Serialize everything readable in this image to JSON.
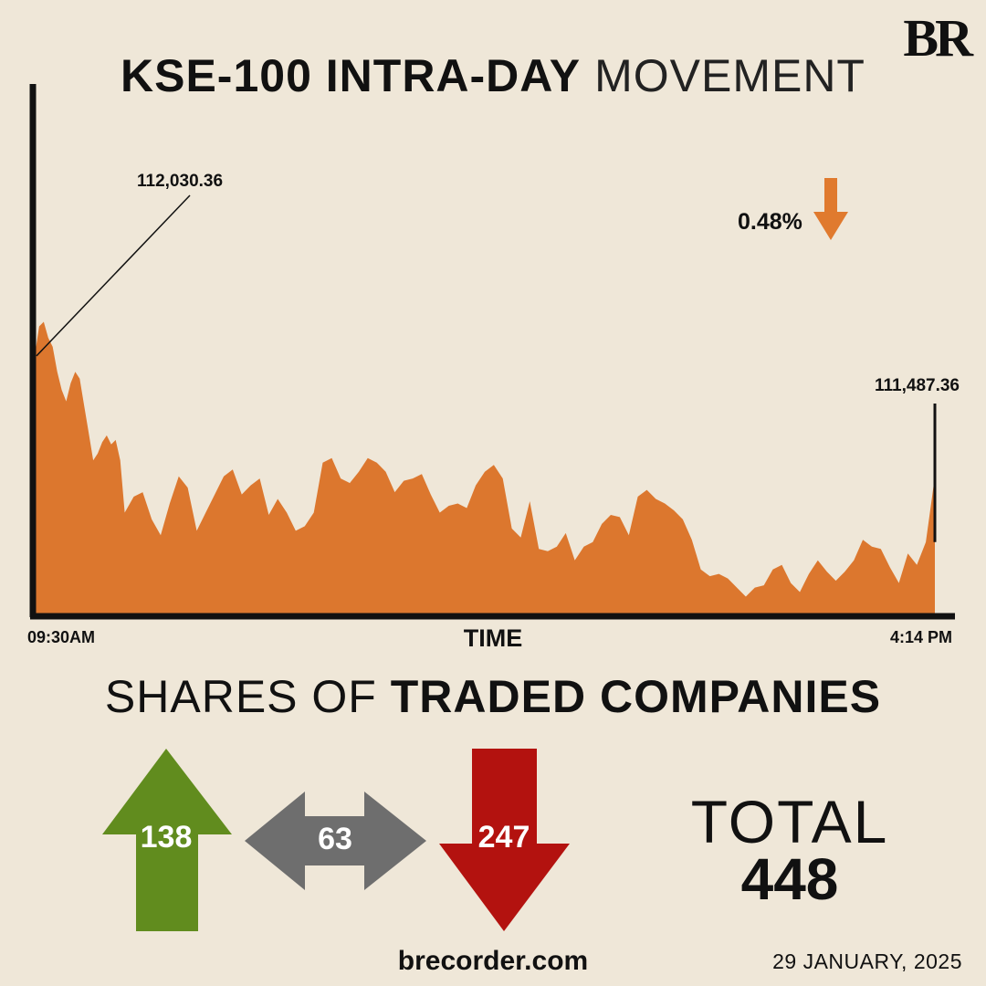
{
  "brand": {
    "logo_text": "BR",
    "website": "brecorder.com"
  },
  "title": {
    "bold": "KSE-100 INTRA-DAY",
    "light": "MOVEMENT"
  },
  "change": {
    "percent_label": "0.48%",
    "direction": "down",
    "arrow_color": "#e07a2e"
  },
  "chart_data": {
    "type": "area",
    "title": "KSE-100 INTRA-DAY MOVEMENT",
    "xlabel": "TIME",
    "ylabel": "",
    "x_start_label": "09:30AM",
    "x_end_label": "4:14 PM",
    "open_label": "112,030.36",
    "close_label": "111,487.36",
    "open": 112030.36,
    "close": 111487.36,
    "fill_color": "#dc772e",
    "series": [
      {
        "x": [
          0.0,
          0.005,
          0.01,
          0.015,
          0.02,
          0.025,
          0.03,
          0.035,
          0.04,
          0.045,
          0.05,
          0.055,
          0.06,
          0.065,
          0.07,
          0.075,
          0.08,
          0.085,
          0.09,
          0.095,
          0.1,
          0.11,
          0.12,
          0.13,
          0.14,
          0.15,
          0.16,
          0.17,
          0.18,
          0.19,
          0.2,
          0.21,
          0.22,
          0.23,
          0.24,
          0.25,
          0.26,
          0.27,
          0.28,
          0.29,
          0.3,
          0.31,
          0.32,
          0.33,
          0.34,
          0.35,
          0.36,
          0.37,
          0.38,
          0.39,
          0.4,
          0.41,
          0.42,
          0.43,
          0.44,
          0.45,
          0.46,
          0.47,
          0.48,
          0.49,
          0.5,
          0.51,
          0.52,
          0.53,
          0.54,
          0.55,
          0.56,
          0.57,
          0.58,
          0.59,
          0.6,
          0.61,
          0.62,
          0.63,
          0.64,
          0.65,
          0.66,
          0.67,
          0.68,
          0.69,
          0.7,
          0.71,
          0.72,
          0.73,
          0.74,
          0.75,
          0.76,
          0.77,
          0.78,
          0.79,
          0.8,
          0.81,
          0.82,
          0.83,
          0.84,
          0.85,
          0.86,
          0.87,
          0.88,
          0.89,
          0.9,
          0.91,
          0.92,
          0.93,
          0.94,
          0.95,
          0.96,
          0.97,
          0.98,
          0.99,
          1.0
        ],
        "values": [
          112020,
          112150,
          112170,
          112100,
          112060,
          111950,
          111870,
          111820,
          111900,
          111950,
          111920,
          111800,
          111680,
          111560,
          111590,
          111640,
          111670,
          111630,
          111650,
          111560,
          111330,
          111400,
          111420,
          111300,
          111230,
          111370,
          111490,
          111440,
          111250,
          111330,
          111410,
          111490,
          111520,
          111410,
          111450,
          111480,
          111320,
          111390,
          111330,
          111250,
          111270,
          111330,
          111550,
          111570,
          111480,
          111460,
          111510,
          111570,
          111550,
          111510,
          111420,
          111470,
          111480,
          111500,
          111410,
          111330,
          111360,
          111370,
          111350,
          111450,
          111510,
          111540,
          111480,
          111260,
          111220,
          111380,
          111170,
          111160,
          111180,
          111240,
          111120,
          111180,
          111200,
          111280,
          111320,
          111310,
          111230,
          111400,
          111430,
          111390,
          111370,
          111340,
          111300,
          111210,
          111080,
          111050,
          111060,
          111040,
          111000,
          110960,
          111000,
          111010,
          111080,
          111100,
          111020,
          110980,
          111060,
          111120,
          111070,
          111030,
          111070,
          111120,
          111210,
          111180,
          111170,
          111090,
          111020,
          111150,
          111100,
          111200,
          111490
        ]
      }
    ]
  },
  "breadth": {
    "title_light": "SHARES OF",
    "title_bold": "TRADED COMPANIES",
    "advanced": "138",
    "unchanged": "63",
    "declined": "247",
    "total_label": "TOTAL",
    "total_value": "448",
    "colors": {
      "advanced": "#618c1e",
      "unchanged": "#6e6e6e",
      "declined": "#b3120f"
    }
  },
  "date": "29 JANUARY, 2025"
}
